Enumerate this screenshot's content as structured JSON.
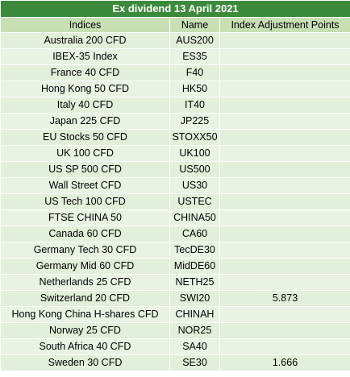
{
  "title": "Ex dividend 13 April 2021",
  "columns": [
    "Indices",
    "Name",
    "Index Adjustment Points"
  ],
  "rows": [
    {
      "index": "Australia 200 CFD",
      "name": "AUS200",
      "points": ""
    },
    {
      "index": "IBEX-35 Index",
      "name": "ES35",
      "points": ""
    },
    {
      "index": "France 40 CFD",
      "name": "F40",
      "points": ""
    },
    {
      "index": "Hong Kong 50 CFD",
      "name": "HK50",
      "points": ""
    },
    {
      "index": "Italy 40 CFD",
      "name": "IT40",
      "points": ""
    },
    {
      "index": "Japan 225 CFD",
      "name": "JP225",
      "points": ""
    },
    {
      "index": "EU Stocks 50 CFD",
      "name": "STOXX50",
      "points": ""
    },
    {
      "index": "UK 100 CFD",
      "name": "UK100",
      "points": ""
    },
    {
      "index": "US SP 500 CFD",
      "name": "US500",
      "points": ""
    },
    {
      "index": "Wall Street CFD",
      "name": "US30",
      "points": ""
    },
    {
      "index": "US Tech 100 CFD",
      "name": "USTEC",
      "points": ""
    },
    {
      "index": "FTSE CHINA 50",
      "name": "CHINA50",
      "points": ""
    },
    {
      "index": "Canada 60 CFD",
      "name": "CA60",
      "points": ""
    },
    {
      "index": "Germany Tech 30 CFD",
      "name": "TecDE30",
      "points": ""
    },
    {
      "index": "Germany Mid 60 CFD",
      "name": "MidDE60",
      "points": ""
    },
    {
      "index": "Netherlands 25 CFD",
      "name": "NETH25",
      "points": ""
    },
    {
      "index": "Switzerland 20 CFD",
      "name": "SWI20",
      "points": "5.873"
    },
    {
      "index": "Hong Kong China H-shares CFD",
      "name": "CHINAH",
      "points": ""
    },
    {
      "index": "Norway 25 CFD",
      "name": "NOR25",
      "points": ""
    },
    {
      "index": "South Africa 40 CFD",
      "name": "SA40",
      "points": ""
    },
    {
      "index": "Sweden 30 CFD",
      "name": "SE30",
      "points": "1.666"
    }
  ]
}
